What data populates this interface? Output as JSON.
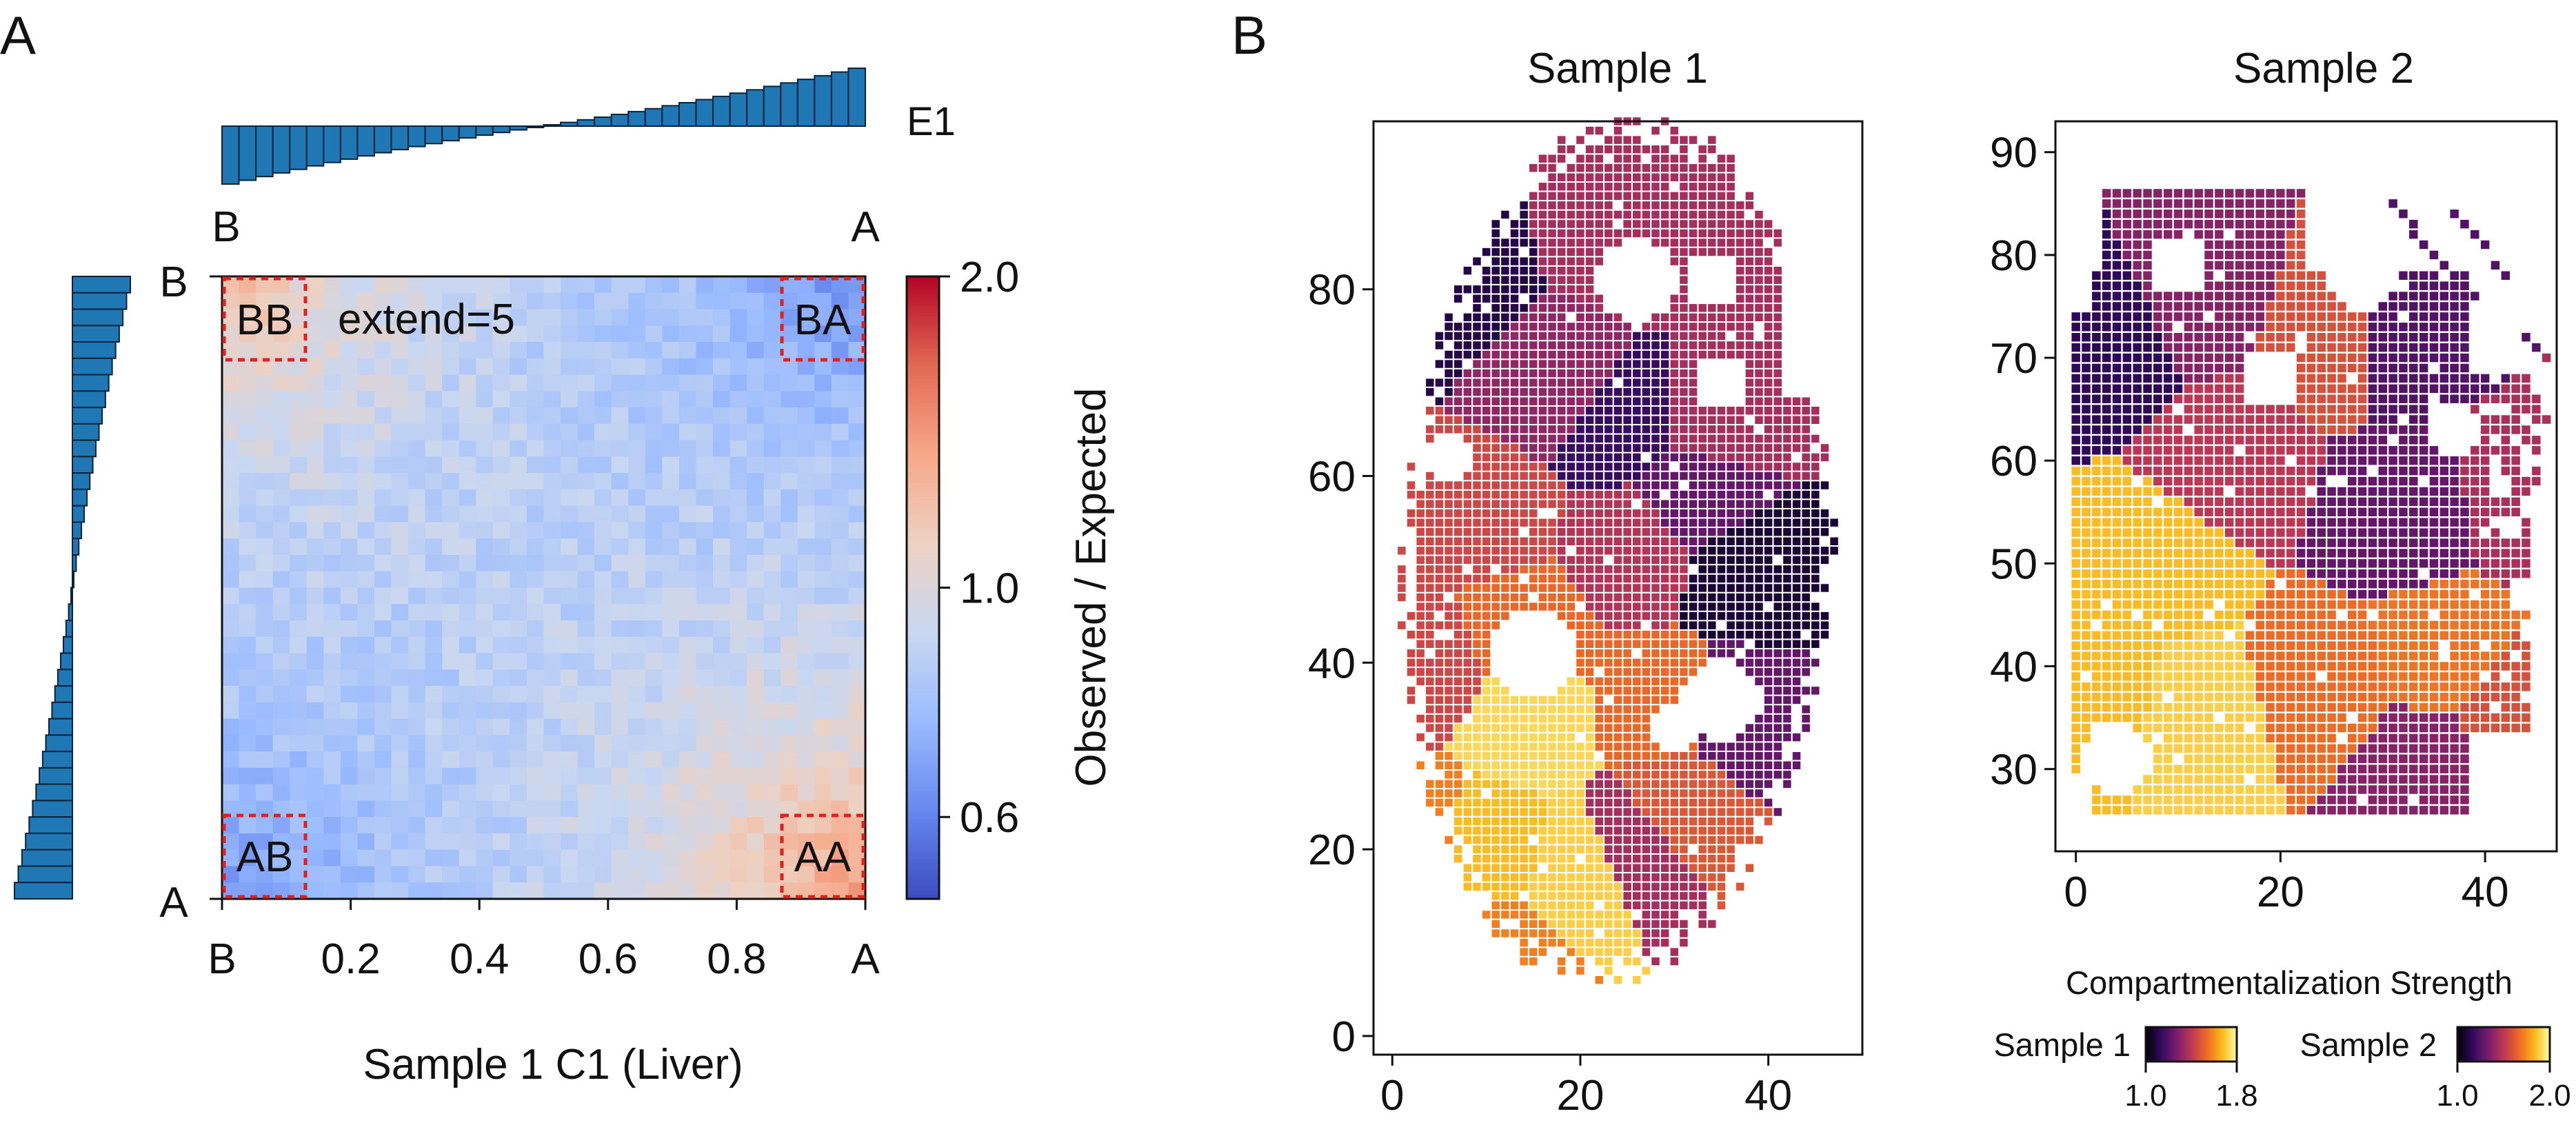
{
  "panels": {
    "a_letter": "A",
    "b_letter": "B"
  },
  "colors": {
    "bar": "#1f77b4",
    "bar_edge": "#0b2338",
    "box": "#e0201c",
    "coolwarm": [
      "#3b4cc0",
      "#6788ee",
      "#9abbff",
      "#c9d7f0",
      "#edd1c2",
      "#f7a889",
      "#e26952",
      "#b40426"
    ],
    "inferno": [
      "#000004",
      "#320a5e",
      "#781c6d",
      "#bc3754",
      "#ed6925",
      "#fbb61a",
      "#fcffa4"
    ]
  },
  "chart_data": [
    {
      "type": "heatmap",
      "id": "saddle",
      "xlabel": "Sample 1 C1 (Liver)",
      "colorbar_label": "Observed / Expected",
      "colorbar_ticks": [
        "2.0",
        "1.0",
        "0.6"
      ],
      "colorbar_range": [
        0.5,
        2.0
      ],
      "colorbar_scale": "log",
      "x_tick_labels": [
        "B",
        "0.2",
        "0.4",
        "0.6",
        "0.8",
        "A"
      ],
      "x_ticks": [
        0.0,
        0.2,
        0.4,
        0.6,
        0.8,
        1.0
      ],
      "top_labels": [
        "B",
        "A"
      ],
      "left_labels": [
        "B",
        "A"
      ],
      "annotation": "extend=5",
      "corner_labels": [
        "BB",
        "BA",
        "AB",
        "AA"
      ],
      "grid_size": 38,
      "corner_values": {
        "BB": 1.25,
        "BA": 0.6,
        "AB": 0.62,
        "AA": 1.45
      },
      "center_value": 0.85
    },
    {
      "type": "bar",
      "id": "e1",
      "label": "E1",
      "n": 38,
      "range": [
        -1.0,
        1.0
      ]
    },
    {
      "type": "scatter",
      "id": "sample1",
      "title": "Sample 1",
      "xlim": [
        -2,
        50
      ],
      "ylim": [
        -2,
        98
      ],
      "x_ticks": [
        0,
        20,
        40
      ],
      "y_ticks": [
        0,
        20,
        40,
        60,
        80
      ],
      "color_range": [
        1.0,
        1.8
      ],
      "regions": [
        {
          "x": 6,
          "y": 81,
          "v": 1.05
        },
        {
          "x": 25,
          "y": 86,
          "v": 1.35
        },
        {
          "x": 18,
          "y": 70,
          "v": 1.3
        },
        {
          "x": 24,
          "y": 66,
          "v": 1.1
        },
        {
          "x": 35,
          "y": 66,
          "v": 1.35
        },
        {
          "x": 38,
          "y": 50,
          "v": 1.02
        },
        {
          "x": 33,
          "y": 58,
          "v": 1.2
        },
        {
          "x": 10,
          "y": 55,
          "v": 1.45
        },
        {
          "x": 25,
          "y": 52,
          "v": 1.38
        },
        {
          "x": 3,
          "y": 40,
          "v": 1.45
        },
        {
          "x": 14,
          "y": 44,
          "v": 1.55
        },
        {
          "x": 37,
          "y": 34,
          "v": 1.2
        },
        {
          "x": 28,
          "y": 35,
          "v": 1.55
        },
        {
          "x": 15,
          "y": 33,
          "v": 1.78
        },
        {
          "x": 2,
          "y": 22,
          "v": 1.6
        },
        {
          "x": 11,
          "y": 21,
          "v": 1.72
        },
        {
          "x": 20,
          "y": 19,
          "v": 1.76
        },
        {
          "x": 25,
          "y": 21,
          "v": 1.35
        },
        {
          "x": 30,
          "y": 25,
          "v": 1.5
        },
        {
          "x": 10,
          "y": 8,
          "v": 1.6
        }
      ]
    },
    {
      "type": "scatter",
      "id": "sample2",
      "title": "Sample 2",
      "xlim": [
        -2,
        47
      ],
      "ylim": [
        22,
        93
      ],
      "x_ticks": [
        0,
        20,
        40
      ],
      "y_ticks": [
        30,
        40,
        50,
        60,
        70,
        80,
        90
      ],
      "color_range": [
        1.0,
        2.0
      ],
      "regions": [
        {
          "x": 3,
          "y": 72,
          "v": 1.1
        },
        {
          "x": 12,
          "y": 76,
          "v": 1.35
        },
        {
          "x": 25,
          "y": 72,
          "v": 1.6
        },
        {
          "x": 32,
          "y": 72,
          "v": 1.2
        },
        {
          "x": 32,
          "y": 55,
          "v": 1.25
        },
        {
          "x": 15,
          "y": 60,
          "v": 1.5
        },
        {
          "x": 44,
          "y": 57,
          "v": 1.45
        },
        {
          "x": 2,
          "y": 37,
          "v": 1.9
        },
        {
          "x": 12,
          "y": 35,
          "v": 1.95
        },
        {
          "x": 24,
          "y": 38,
          "v": 1.7
        },
        {
          "x": 36,
          "y": 41,
          "v": 1.72
        },
        {
          "x": 34,
          "y": 30,
          "v": 1.35
        },
        {
          "x": 43,
          "y": 36,
          "v": 1.6
        },
        {
          "x": 8,
          "y": 50,
          "v": 1.9
        }
      ]
    }
  ],
  "legend": {
    "title": "Compartmentalization Strength",
    "items": [
      {
        "label": "Sample 1",
        "min": "1.0",
        "max": "1.8"
      },
      {
        "label": "Sample 2",
        "min": "1.0",
        "max": "2.0"
      }
    ]
  }
}
